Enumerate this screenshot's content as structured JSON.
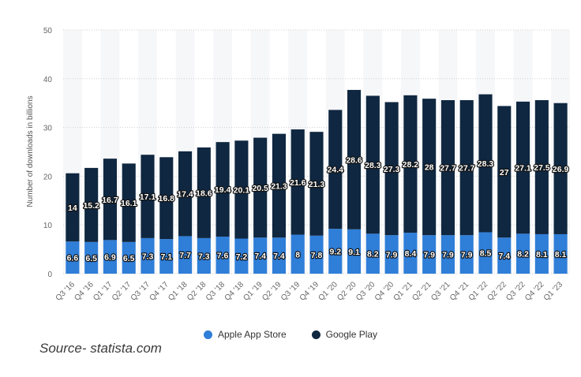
{
  "chart_data": {
    "type": "bar",
    "stacked": true,
    "categories": [
      "Q3 '16",
      "Q4 '16",
      "Q1 '17",
      "Q2 '17",
      "Q3 '17",
      "Q4 '17",
      "Q1 '18",
      "Q2 '18",
      "Q3 '18",
      "Q4 '18",
      "Q1 '19",
      "Q2 '19",
      "Q3 '19",
      "Q4 '19",
      "Q1 '20",
      "Q2 '20",
      "Q3 '20",
      "Q4 '20",
      "Q1 '21",
      "Q2 '21",
      "Q3 '21",
      "Q4 '21",
      "Q1 '22",
      "Q2 '22",
      "Q3 '22",
      "Q4 '22",
      "Q1 '23"
    ],
    "series": [
      {
        "name": "Apple App Store",
        "color": "#2f7ed8",
        "values": [
          6.6,
          6.5,
          6.9,
          6.5,
          7.3,
          7.1,
          7.7,
          7.3,
          7.6,
          7.2,
          7.4,
          7.4,
          8,
          7.8,
          9.2,
          9.1,
          8.2,
          7.9,
          8.4,
          7.9,
          7.9,
          7.9,
          8.5,
          7.4,
          8.2,
          8.1,
          8.1
        ]
      },
      {
        "name": "Google Play",
        "color": "#0f2740",
        "values": [
          14,
          15.2,
          16.7,
          16.1,
          17.1,
          16.8,
          17.4,
          18.6,
          19.4,
          20.1,
          20.5,
          21.3,
          21.6,
          21.3,
          24.4,
          28.6,
          28.3,
          27.3,
          28.2,
          28,
          27.7,
          27.7,
          28.3,
          27,
          27.1,
          27.5,
          26.9
        ]
      }
    ],
    "ylabel": "Number of downloads in billions",
    "ylim": [
      0,
      50
    ],
    "yticks": [
      0,
      10,
      20,
      30,
      40,
      50
    ],
    "grid": "horizontal dotted",
    "legend_position": "bottom-center",
    "data_labels": true
  },
  "source": "Source- statista.com"
}
